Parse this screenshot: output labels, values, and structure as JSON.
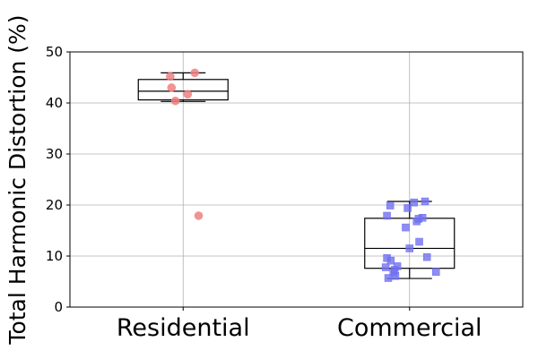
{
  "chart_data": {
    "type": "box",
    "title": "",
    "xlabel": "",
    "ylabel": "Total Harmonic Distortion (%)",
    "ylim": [
      0,
      50
    ],
    "yticks": [
      "0",
      "10",
      "20",
      "30",
      "40",
      "50"
    ],
    "categories": [
      "Residential",
      "Commercial"
    ],
    "grid": true,
    "boxes": [
      {
        "category": "Residential",
        "whisker_low": 40.3,
        "q1": 40.6,
        "median": 42.3,
        "q3": 44.6,
        "whisker_high": 45.9,
        "point_color": "#f08080",
        "marker": "circle",
        "points": [
          {
            "x": -0.2,
            "y": 45.2
          },
          {
            "x": -0.18,
            "y": 43.0
          },
          {
            "x": -0.12,
            "y": 40.4
          },
          {
            "x": 0.07,
            "y": 41.7
          },
          {
            "x": 0.18,
            "y": 45.9
          },
          {
            "x": 0.24,
            "y": 17.9
          }
        ]
      },
      {
        "category": "Commercial",
        "whisker_low": 5.6,
        "q1": 7.6,
        "median": 11.5,
        "q3": 17.4,
        "whisker_high": 20.7,
        "point_color": "#7070f0",
        "marker": "square",
        "points": [
          {
            "x": -0.37,
            "y": 7.8
          },
          {
            "x": -0.35,
            "y": 9.6
          },
          {
            "x": -0.35,
            "y": 17.9
          },
          {
            "x": -0.33,
            "y": 5.7
          },
          {
            "x": -0.3,
            "y": 19.9
          },
          {
            "x": -0.29,
            "y": 9.1
          },
          {
            "x": -0.25,
            "y": 6.8
          },
          {
            "x": -0.23,
            "y": 7.3
          },
          {
            "x": -0.22,
            "y": 6.1
          },
          {
            "x": -0.19,
            "y": 8.0
          },
          {
            "x": -0.06,
            "y": 15.6
          },
          {
            "x": -0.03,
            "y": 19.4
          },
          {
            "x": 0.0,
            "y": 11.5
          },
          {
            "x": 0.07,
            "y": 20.5
          },
          {
            "x": 0.11,
            "y": 16.8
          },
          {
            "x": 0.14,
            "y": 17.3
          },
          {
            "x": 0.15,
            "y": 12.8
          },
          {
            "x": 0.2,
            "y": 17.5
          },
          {
            "x": 0.24,
            "y": 20.7
          },
          {
            "x": 0.27,
            "y": 9.8
          },
          {
            "x": 0.41,
            "y": 6.9
          }
        ]
      }
    ]
  }
}
